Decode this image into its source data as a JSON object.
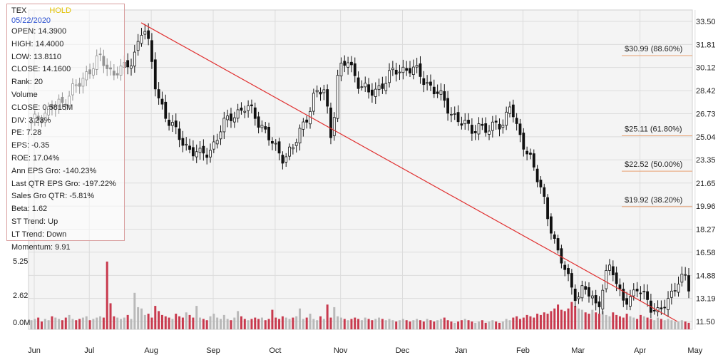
{
  "chart_data": {
    "type": "candlestick",
    "ticker": "TEX",
    "rating": "HOLD",
    "rating_color": "#e0c000",
    "date": "05/22/2020",
    "stats": [
      {
        "label": "OPEN",
        "value": "14.3900"
      },
      {
        "label": "HIGH",
        "value": "14.4000"
      },
      {
        "label": "LOW",
        "value": "13.8110"
      },
      {
        "label": "CLOSE",
        "value": "14.1600"
      },
      {
        "label": "Rank",
        "value": "20"
      },
      {
        "label": "Volume",
        "value": ""
      },
      {
        "label": "CLOSE",
        "value": "0.5815M"
      },
      {
        "label": "DIV",
        "value": "3.23%"
      },
      {
        "label": "PE",
        "value": "7.28"
      },
      {
        "label": "EPS",
        "value": "-0.35"
      },
      {
        "label": "ROE",
        "value": "17.04%"
      },
      {
        "label": "Ann EPS Gro",
        "value": "-140.23%"
      },
      {
        "label": "Last QTR EPS Gro",
        "value": "-197.22%"
      },
      {
        "label": "Sales Gro QTR",
        "value": "-5.81%"
      },
      {
        "label": "Beta",
        "value": "1.62"
      },
      {
        "label": "ST Trend",
        "value": "Up"
      },
      {
        "label": "LT Trend",
        "value": "Down"
      },
      {
        "label": "Momentum",
        "value": "9.91"
      }
    ],
    "x_tick_labels": [
      "Jun",
      "Jul",
      "Aug",
      "Sep",
      "Oct",
      "Nov",
      "Dec",
      "Jan",
      "Feb",
      "Mar",
      "Apr",
      "May"
    ],
    "price_ticks": [
      "33.50",
      "31.81",
      "30.12",
      "28.42",
      "26.73",
      "25.04",
      "23.35",
      "21.65",
      "19.96",
      "18.27",
      "16.58",
      "14.88",
      "13.19",
      "11.50"
    ],
    "price_range": [
      11.5,
      33.5
    ],
    "volume_ticks": [
      "5.25",
      "2.62",
      "0.0M"
    ],
    "volume_range_m": [
      0,
      5.25
    ],
    "fibonacci_levels": [
      {
        "price": 30.99,
        "label": "$30.99 (88.60%)"
      },
      {
        "price": 25.11,
        "label": "$25.11 (61.80%)"
      },
      {
        "price": 22.52,
        "label": "$22.52 (50.00%)"
      },
      {
        "price": 19.92,
        "label": "$19.92 (38.20%)"
      }
    ],
    "trendline": {
      "start": {
        "date": "Jul 30",
        "price": 33.4
      },
      "end": {
        "date": "May 22",
        "price": 11.5
      },
      "color": "#e03030"
    },
    "anchors": [
      [
        0,
        26.0
      ],
      [
        3,
        26.6
      ],
      [
        6,
        27.2
      ],
      [
        9,
        27.4
      ],
      [
        12,
        28.6
      ],
      [
        15,
        28.9
      ],
      [
        18,
        30.4
      ],
      [
        20,
        30.9
      ],
      [
        22,
        30.1
      ],
      [
        24,
        29.6
      ],
      [
        26,
        30.3
      ],
      [
        28,
        29.9
      ],
      [
        30,
        30.5
      ],
      [
        33,
        33.3
      ],
      [
        34,
        32.8
      ],
      [
        35,
        31.3
      ],
      [
        37,
        28.4
      ],
      [
        40,
        26.6
      ],
      [
        43,
        25.2
      ],
      [
        46,
        24.4
      ],
      [
        50,
        23.6
      ],
      [
        53,
        24.1
      ],
      [
        56,
        25.4
      ],
      [
        59,
        26.6
      ],
      [
        63,
        27.1
      ],
      [
        66,
        26.8
      ],
      [
        69,
        25.6
      ],
      [
        72,
        24.2
      ],
      [
        75,
        23.6
      ],
      [
        78,
        24.3
      ],
      [
        81,
        26.2
      ],
      [
        84,
        28.1
      ],
      [
        87,
        28.4
      ],
      [
        89,
        25.0
      ],
      [
        91,
        29.7
      ],
      [
        94,
        30.6
      ],
      [
        97,
        29.1
      ],
      [
        100,
        28.1
      ],
      [
        103,
        28.7
      ],
      [
        106,
        29.4
      ],
      [
        109,
        30.0
      ],
      [
        112,
        30.1
      ],
      [
        115,
        29.6
      ],
      [
        118,
        28.9
      ],
      [
        121,
        28.0
      ],
      [
        124,
        27.1
      ],
      [
        127,
        26.1
      ],
      [
        130,
        25.6
      ],
      [
        133,
        25.9
      ],
      [
        136,
        25.2
      ],
      [
        138,
        26.4
      ],
      [
        140,
        25.9
      ],
      [
        142,
        27.3
      ],
      [
        144,
        25.6
      ],
      [
        146,
        24.7
      ],
      [
        148,
        23.4
      ],
      [
        150,
        21.9
      ],
      [
        152,
        20.6
      ],
      [
        154,
        18.6
      ],
      [
        156,
        16.4
      ],
      [
        158,
        15.5
      ],
      [
        160,
        14.4
      ],
      [
        162,
        13.1
      ],
      [
        164,
        13.8
      ],
      [
        166,
        13.5
      ],
      [
        168,
        12.6
      ],
      [
        170,
        14.4
      ],
      [
        172,
        15.6
      ],
      [
        174,
        14.1
      ],
      [
        176,
        13.1
      ],
      [
        178,
        12.9
      ],
      [
        180,
        14.1
      ],
      [
        182,
        13.6
      ],
      [
        184,
        12.3
      ],
      [
        186,
        11.9
      ],
      [
        188,
        13.1
      ],
      [
        190,
        13.6
      ],
      [
        192,
        14.3
      ],
      [
        194,
        14.7
      ],
      [
        195,
        14.2
      ]
    ],
    "volume_bars_m": [
      0.7,
      0.8,
      0.9,
      0.6,
      0.8,
      0.7,
      1.0,
      0.9,
      0.8,
      0.7,
      0.9,
      1.1,
      0.8,
      0.7,
      0.8,
      0.9,
      1.0,
      0.7,
      0.8,
      0.9,
      1.0,
      0.9,
      5.2,
      2.0,
      1.0,
      0.9,
      0.8,
      0.9,
      1.1,
      0.8,
      2.8,
      1.7,
      1.6,
      1.1,
      1.2,
      0.9,
      1.8,
      1.4,
      1.1,
      1.0,
      0.9,
      0.8,
      1.2,
      1.0,
      0.9,
      1.3,
      1.1,
      0.9,
      1.8,
      0.9,
      0.8,
      0.7,
      1.0,
      1.2,
      0.9,
      0.8,
      1.1,
      0.8,
      0.7,
      0.9,
      1.4,
      1.0,
      0.8,
      0.7,
      0.8,
      0.9,
      0.8,
      0.9,
      0.7,
      0.8,
      1.5,
      0.9,
      0.8,
      1.0,
      0.9,
      0.8,
      0.9,
      1.0,
      1.6,
      0.8,
      0.9,
      1.2,
      0.8,
      0.7,
      1.0,
      0.8,
      1.9,
      0.9,
      1.7,
      1.0,
      0.9,
      0.8,
      0.7,
      0.8,
      0.9,
      0.8,
      0.7,
      0.9,
      0.8,
      0.7,
      0.8,
      0.9,
      0.8,
      0.7,
      0.8,
      0.7,
      0.6,
      0.7,
      0.8,
      0.7,
      0.6,
      0.7,
      0.8,
      0.7,
      0.6,
      0.8,
      0.7,
      0.6,
      0.7,
      0.8,
      0.9,
      0.7,
      0.6,
      0.5,
      0.6,
      0.7,
      0.8,
      0.7,
      0.6,
      0.5,
      0.6,
      0.7,
      0.5,
      0.6,
      0.7,
      0.6,
      0.5,
      0.6,
      0.8,
      0.7,
      0.9,
      1.0,
      0.8,
      0.9,
      1.1,
      1.0,
      0.9,
      1.2,
      1.1,
      1.3,
      1.2,
      1.4,
      1.6,
      1.9,
      1.5,
      1.4,
      1.6,
      2.1,
      1.8,
      1.6,
      1.5,
      1.3,
      1.2,
      1.5,
      1.3,
      1.2,
      1.4,
      1.1,
      1.0,
      1.3,
      1.1,
      1.0,
      0.9,
      1.2,
      1.0,
      0.9,
      0.8,
      1.1,
      1.0,
      0.9,
      0.8,
      0.7,
      0.9,
      0.8,
      0.7,
      0.8,
      0.7,
      0.6,
      0.6,
      0.7,
      0.6,
      0.5
    ]
  }
}
